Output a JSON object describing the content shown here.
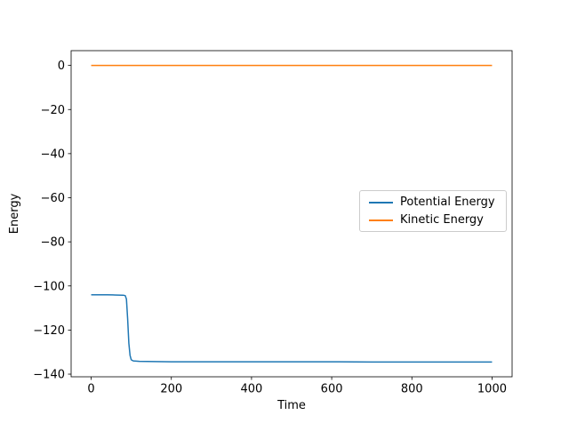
{
  "chart_data": {
    "type": "line",
    "title": "",
    "xlabel": "Time",
    "ylabel": "Energy",
    "xlim": [
      -50,
      1050
    ],
    "ylim": [
      -141.2,
      6.7
    ],
    "grid": false,
    "legend_position": "center right",
    "x_ticks": {
      "values": [
        0,
        200,
        400,
        600,
        800,
        1000
      ],
      "labels": [
        "0",
        "200",
        "400",
        "600",
        "800",
        "1000"
      ]
    },
    "y_ticks": {
      "values": [
        0,
        -20,
        -40,
        -60,
        -80,
        -100,
        -120,
        -140
      ],
      "labels": [
        "0",
        "−20",
        "−40",
        "−60",
        "−80",
        "−100",
        "−120",
        "−140"
      ]
    },
    "series": [
      {
        "name": "Potential Energy",
        "color": "#1f77b4",
        "x": [
          0,
          20,
          40,
          60,
          80,
          85,
          88,
          91,
          94,
          97,
          100,
          105,
          120,
          160,
          200,
          300,
          400,
          500,
          600,
          700,
          800,
          900,
          1000
        ],
        "y": [
          -104,
          -104,
          -104,
          -104.1,
          -104.2,
          -104.4,
          -106,
          -115,
          -126,
          -131.5,
          -133.5,
          -134,
          -134.2,
          -134.3,
          -134.4,
          -134.4,
          -134.4,
          -134.4,
          -134.4,
          -134.5,
          -134.5,
          -134.5,
          -134.5
        ]
      },
      {
        "name": "Kinetic Energy",
        "color": "#ff7f0e",
        "x": [
          0,
          100,
          200,
          300,
          400,
          500,
          600,
          700,
          800,
          900,
          1000
        ],
        "y": [
          0,
          0,
          0,
          0,
          0,
          0,
          0,
          0,
          0,
          0,
          0
        ]
      }
    ]
  }
}
